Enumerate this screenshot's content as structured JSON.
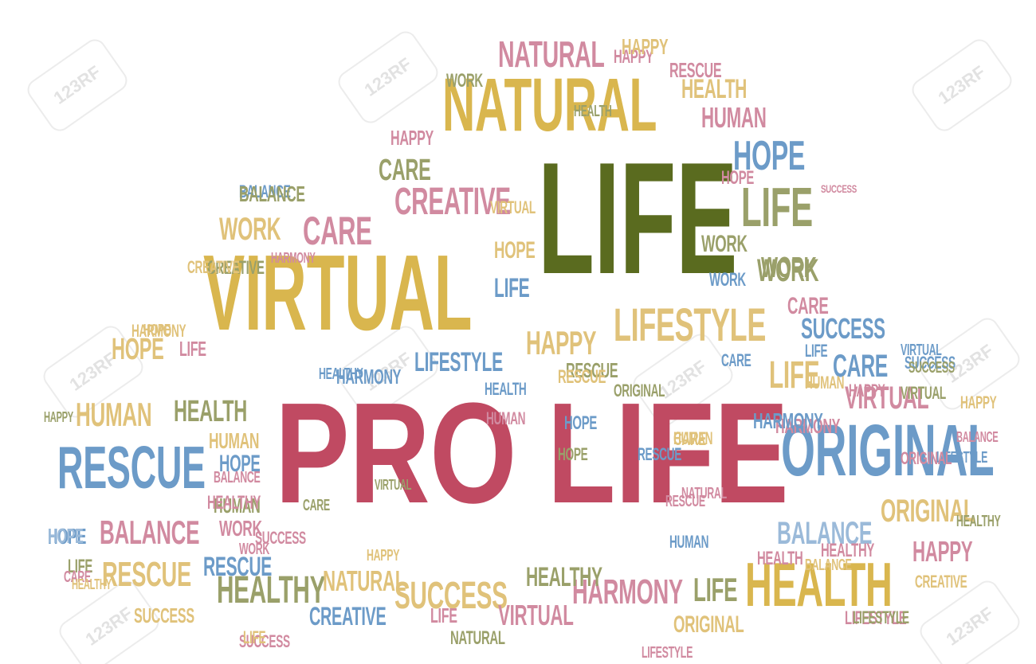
{
  "palette": {
    "gold": "#d9b64e",
    "olive": "#5a6b1f",
    "crimson": "#c04a62",
    "blue": "#6c9bc8",
    "pink": "#d18aa0",
    "sage": "#9aa06a",
    "tan": "#e0c27a",
    "lightblue": "#9bbad9"
  },
  "watermark": "123RF",
  "words": [
    {
      "text": "PRO LIFE",
      "color": "crimson"
    },
    {
      "text": "LIFE",
      "color": "olive"
    },
    {
      "text": "VIRTUAL",
      "color": "gold"
    },
    {
      "text": "NATURAL",
      "color": "gold"
    },
    {
      "text": "ORIGINAL",
      "color": "blue"
    },
    {
      "text": "RESCUE",
      "color": "blue"
    },
    {
      "text": "HEALTH",
      "color": "gold"
    },
    {
      "text": "LIFESTYLE",
      "color": "tan"
    },
    {
      "text": "LIFE",
      "color": "sage"
    },
    {
      "text": "HOPE",
      "color": "blue"
    },
    {
      "text": "WORK",
      "color": "sage"
    },
    {
      "text": "CARE",
      "color": "pink"
    },
    {
      "text": "CREATIVE",
      "color": "pink"
    },
    {
      "text": "BALANCE",
      "color": "pink"
    },
    {
      "text": "HUMAN",
      "color": "tan"
    },
    {
      "text": "HEALTHY",
      "color": "sage"
    },
    {
      "text": "SUCCESS",
      "color": "tan"
    },
    {
      "text": "HARMONY",
      "color": "pink"
    },
    {
      "text": "LIFESTYLE",
      "color": "blue"
    },
    {
      "text": "HAPPY",
      "color": "tan"
    },
    {
      "text": "SUCCESS",
      "color": "blue"
    },
    {
      "text": "CARE",
      "color": "blue"
    },
    {
      "text": "VIRTUAL",
      "color": "pink"
    },
    {
      "text": "ORIGINAL",
      "color": "tan"
    },
    {
      "text": "BALANCE",
      "color": "lightblue"
    },
    {
      "text": "HAPPY",
      "color": "pink"
    },
    {
      "text": "NATURAL",
      "color": "pink"
    },
    {
      "text": "HUMAN",
      "color": "pink"
    },
    {
      "text": "HEALTH",
      "color": "tan"
    },
    {
      "text": "HOPE",
      "color": "tan"
    },
    {
      "text": "HUMAN",
      "color": "tan"
    },
    {
      "text": "HEALTH",
      "color": "sage"
    },
    {
      "text": "RESCUE",
      "color": "tan"
    },
    {
      "text": "HEALTHY",
      "color": "sage"
    },
    {
      "text": "NATURAL",
      "color": "tan"
    },
    {
      "text": "SUCCESS",
      "color": "tan"
    },
    {
      "text": "VIRTUAL",
      "color": "pink"
    },
    {
      "text": "HARMONY",
      "color": "pink"
    },
    {
      "text": "LIFE",
      "color": "sage"
    },
    {
      "text": "CREATIVE",
      "color": "blue"
    },
    {
      "text": "ORIGINAL",
      "color": "tan"
    },
    {
      "text": "LIFESTYLE",
      "color": "pink"
    },
    {
      "text": "HAPPY",
      "color": "pink"
    },
    {
      "text": "WORK",
      "color": "tan"
    },
    {
      "text": "CARE",
      "color": "sage"
    },
    {
      "text": "HOPE",
      "color": "blue"
    },
    {
      "text": "HUMAN",
      "color": "sage"
    },
    {
      "text": "RESCUE",
      "color": "blue"
    },
    {
      "text": "BALANCE",
      "color": "blue"
    },
    {
      "text": "HEALTHY",
      "color": "pink"
    },
    {
      "text": "WORK",
      "color": "pink"
    },
    {
      "text": "HOPE",
      "color": "tan"
    },
    {
      "text": "HAPPY",
      "color": "tan"
    },
    {
      "text": "RESCUE",
      "color": "pink"
    },
    {
      "text": "WORK",
      "color": "sage"
    },
    {
      "text": "CARE",
      "color": "pink"
    },
    {
      "text": "SUCCESS",
      "color": "pink"
    },
    {
      "text": "LIFE",
      "color": "tan"
    },
    {
      "text": "HARMONY",
      "color": "blue"
    },
    {
      "text": "HAPPY",
      "color": "tan"
    },
    {
      "text": "RESCUE",
      "color": "sage"
    },
    {
      "text": "HEALTH",
      "color": "blue"
    },
    {
      "text": "HOPE",
      "color": "blue"
    },
    {
      "text": "LIFE",
      "color": "blue"
    },
    {
      "text": "CARE",
      "color": "tan"
    },
    {
      "text": "BALANCE",
      "color": "sage"
    },
    {
      "text": "HARMONY",
      "color": "tan"
    },
    {
      "text": "CREATIVE",
      "color": "sage"
    },
    {
      "text": "WORK",
      "color": "sage"
    },
    {
      "text": "HEALTHY",
      "color": "pink"
    },
    {
      "text": "HOPE",
      "color": "blue"
    },
    {
      "text": "LIFE",
      "color": "pink"
    },
    {
      "text": "HOPE",
      "color": "sage"
    },
    {
      "text": "SUCCESS",
      "color": "blue"
    },
    {
      "text": "VIRTUAL",
      "color": "sage"
    },
    {
      "text": "HAPPY",
      "color": "pink"
    },
    {
      "text": "HUMAN",
      "color": "tan"
    },
    {
      "text": "LIFE",
      "color": "blue"
    },
    {
      "text": "HEALTHY",
      "color": "sage"
    },
    {
      "text": "LIFESTYLE",
      "color": "blue"
    },
    {
      "text": "VIRTUAL",
      "color": "blue"
    },
    {
      "text": "HOPE",
      "color": "lightblue"
    },
    {
      "text": "WORK",
      "color": "sage"
    },
    {
      "text": "SUCCESS",
      "color": "sage"
    },
    {
      "text": "RESCUE",
      "color": "pink"
    },
    {
      "text": "CARE",
      "color": "sage"
    },
    {
      "text": "HAPPY",
      "color": "tan"
    },
    {
      "text": "HUMAN",
      "color": "tan"
    },
    {
      "text": "NATURAL",
      "color": "sage"
    },
    {
      "text": "HARMONY",
      "color": "blue"
    },
    {
      "text": "BALANCE",
      "color": "pink"
    },
    {
      "text": "LIFE",
      "color": "pink"
    },
    {
      "text": "HAPPY",
      "color": "pink"
    },
    {
      "text": "CREATIVE",
      "color": "tan"
    },
    {
      "text": "RESCUE",
      "color": "tan"
    },
    {
      "text": "HOPE",
      "color": "pink"
    },
    {
      "text": "SUCCESS",
      "color": "pink"
    },
    {
      "text": "LIFE",
      "color": "sage"
    },
    {
      "text": "HEALTHY",
      "color": "blue"
    },
    {
      "text": "ORIGINAL",
      "color": "pink"
    },
    {
      "text": "HEALTH",
      "color": "pink"
    },
    {
      "text": "WORK",
      "color": "blue"
    },
    {
      "text": "CARE",
      "color": "blue"
    },
    {
      "text": "HUMAN",
      "color": "pink"
    },
    {
      "text": "BALANCE",
      "color": "tan"
    },
    {
      "text": "LIFESTYLE",
      "color": "sage"
    },
    {
      "text": "VIRTUAL",
      "color": "tan"
    },
    {
      "text": "HARMONY",
      "color": "pink"
    },
    {
      "text": "CREATIVE",
      "color": "tan"
    },
    {
      "text": "HUMAN",
      "color": "blue"
    },
    {
      "text": "HAPPY",
      "color": "sage"
    },
    {
      "text": "SUCCESS",
      "color": "pink"
    },
    {
      "text": "RESCUE",
      "color": "blue"
    },
    {
      "text": "ORIGINAL",
      "color": "sage"
    },
    {
      "text": "LIFE",
      "color": "tan"
    },
    {
      "text": "CARE",
      "color": "pink"
    },
    {
      "text": "HOPE",
      "color": "tan"
    },
    {
      "text": "HEALTH",
      "color": "sage"
    },
    {
      "text": "NATURAL",
      "color": "pink"
    },
    {
      "text": "LIFESTYLE",
      "color": "pink"
    },
    {
      "text": "HEALTHY",
      "color": "tan"
    },
    {
      "text": "WORK",
      "color": "pink"
    },
    {
      "text": "BALANCE",
      "color": "pink"
    },
    {
      "text": "VIRTUAL",
      "color": "sage"
    }
  ]
}
